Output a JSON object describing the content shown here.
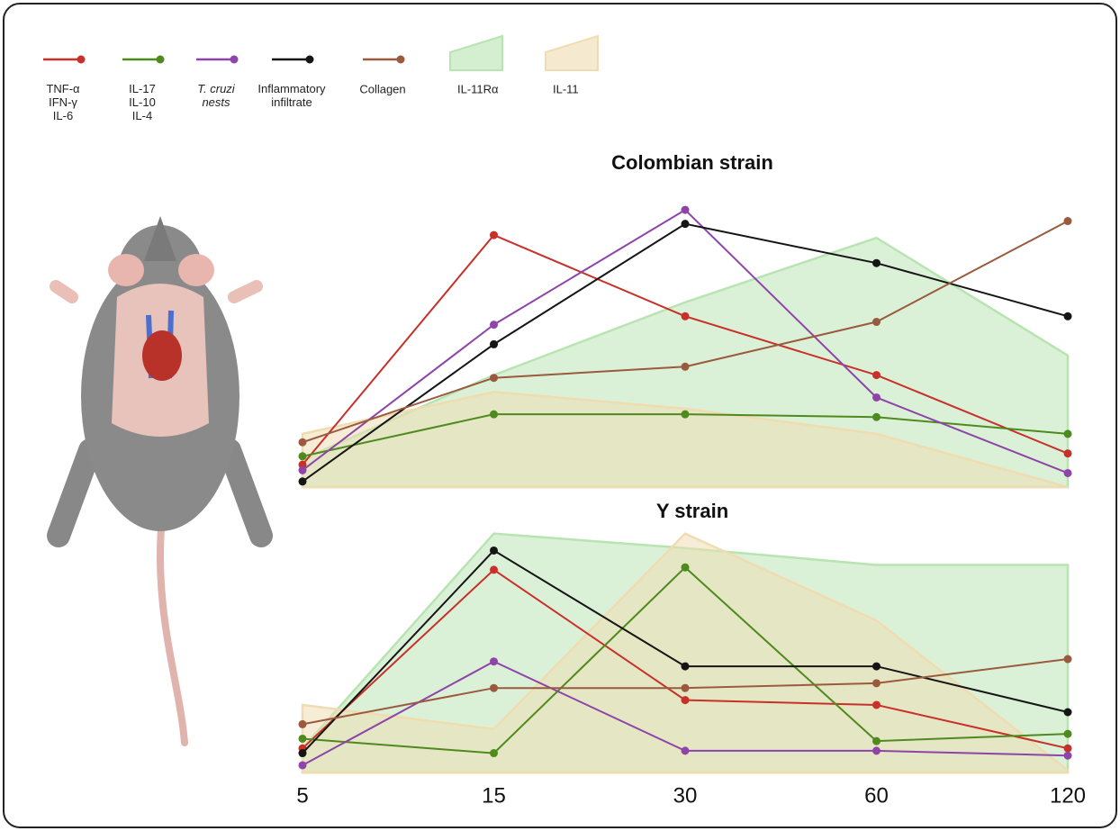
{
  "chart_data": [
    {
      "type": "line",
      "title": "Colombian strain",
      "ylim": [
        0,
        100
      ],
      "series": [
        {
          "name": "IL-11Rα",
          "type": "area",
          "color": "#b7e4b0",
          "values": [
            10,
            40,
            66,
            89,
            47
          ]
        },
        {
          "name": "IL-11",
          "type": "area",
          "color": "#efdcb0",
          "values": [
            19,
            34,
            28,
            19,
            0
          ]
        },
        {
          "name": "TNF-α\nIFN-γ\nIL-6",
          "color": "#c8302a",
          "values": [
            8,
            90,
            61,
            40,
            12
          ]
        },
        {
          "name": "IL-17\nIL-10\nIL-4",
          "color": "#4e8a1e",
          "values": [
            11,
            26,
            26,
            25,
            19
          ]
        },
        {
          "name": "T. cruzi\nnests",
          "color": "#8e44a8",
          "values": [
            6,
            58,
            99,
            32,
            5
          ]
        },
        {
          "name": "Inflammatory\ninfiltrate",
          "color": "#151515",
          "values": [
            2,
            51,
            94,
            80,
            61
          ]
        },
        {
          "name": "Collagen",
          "color": "#9a5a3e",
          "values": [
            16,
            39,
            43,
            59,
            95
          ]
        }
      ]
    },
    {
      "type": "line",
      "title": "Y strain",
      "ylim": [
        0,
        100
      ],
      "categories": [
        "5",
        "15",
        "30",
        "60",
        "120"
      ],
      "series": [
        {
          "type": "area",
          "color": "#b7e4b0",
          "values": [
            10,
            99,
            93,
            86,
            86
          ]
        },
        {
          "type": "area",
          "color": "#efdcb0",
          "values": [
            28,
            18,
            99,
            63,
            1
          ]
        },
        {
          "color": "#c8302a",
          "values": [
            10,
            84,
            30,
            28,
            10
          ]
        },
        {
          "color": "#4e8a1e",
          "values": [
            14,
            8,
            85,
            13,
            16
          ]
        },
        {
          "color": "#8e44a8",
          "values": [
            3,
            46,
            9,
            9,
            7
          ]
        },
        {
          "color": "#151515",
          "values": [
            8,
            92,
            44,
            44,
            25
          ]
        },
        {
          "color": "#9a5a3e",
          "values": [
            20,
            35,
            35,
            37,
            47
          ]
        }
      ]
    }
  ]
}
